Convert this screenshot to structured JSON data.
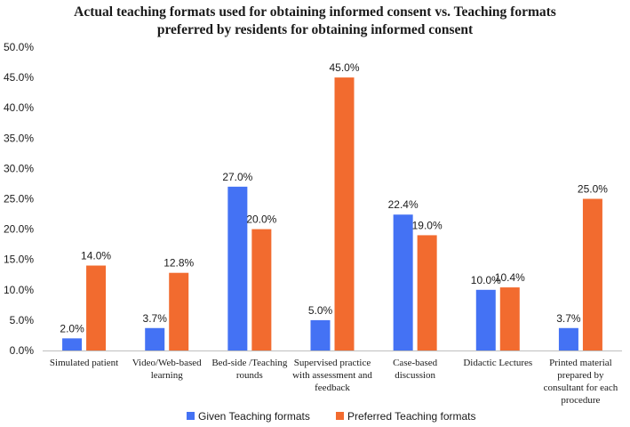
{
  "chart_data": {
    "type": "bar",
    "title_lines": [
      "Actual teaching formats used for obtaining informed consent vs. Teaching formats",
      "preferred by residents for obtaining informed consent"
    ],
    "categories": [
      [
        "Simulated patient"
      ],
      [
        "Video/Web-based",
        "learning"
      ],
      [
        "Bed-side /Teaching",
        "rounds"
      ],
      [
        "Supervised practice",
        "with assessment and",
        "feedback"
      ],
      [
        "Case-based",
        "discussion"
      ],
      [
        "Didactic Lectures"
      ],
      [
        "Printed material",
        "prepared by",
        "consultant for each",
        "procedure"
      ]
    ],
    "series": [
      {
        "name": "Given Teaching formats",
        "color": "#4472F4",
        "values": [
          2.0,
          3.7,
          27.0,
          5.0,
          22.4,
          10.0,
          3.7
        ],
        "labels": [
          "2.0%",
          "3.7%",
          "27.0%",
          "5.0%",
          "22.4%",
          "10.0%",
          "3.7%"
        ]
      },
      {
        "name": "Preferred Teaching formats",
        "color": "#F26B2F",
        "values": [
          14.0,
          12.8,
          20.0,
          45.0,
          19.0,
          10.4,
          25.0
        ],
        "labels": [
          "14.0%",
          "12.8%",
          "20.0%",
          "45.0%",
          "19.0%",
          "10.4%",
          "25.0%"
        ]
      }
    ],
    "ylim": [
      0,
      50
    ],
    "yticks": [
      0,
      5,
      10,
      15,
      20,
      25,
      30,
      35,
      40,
      45,
      50
    ],
    "ytick_labels": [
      "0.0%",
      "5.0%",
      "10.0%",
      "15.0%",
      "20.0%",
      "25.0%",
      "30.0%",
      "35.0%",
      "40.0%",
      "45.0%",
      "50.0%"
    ],
    "legend_position": "bottom",
    "grid": false
  }
}
